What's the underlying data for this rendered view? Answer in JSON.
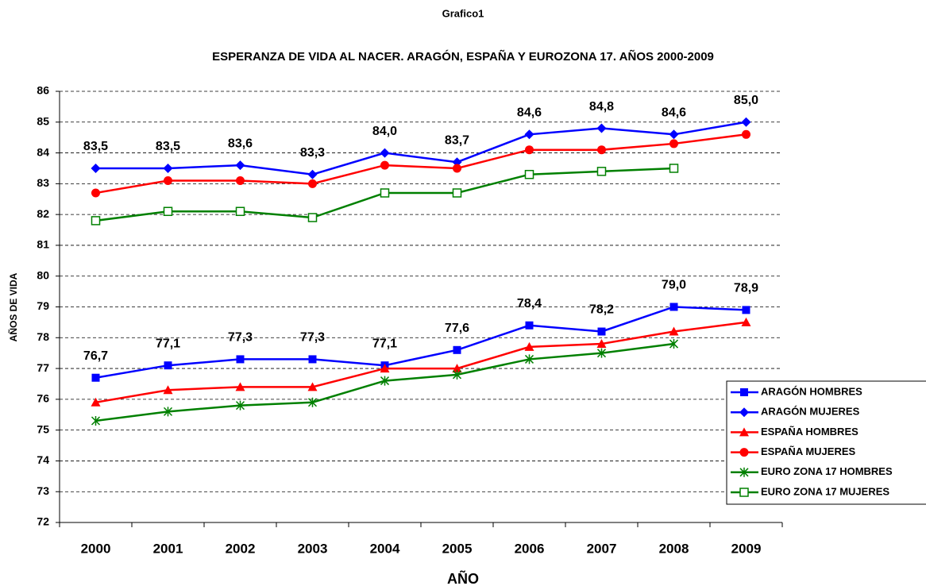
{
  "chart_data": {
    "type": "line",
    "header": "Grafico1",
    "title": "ESPERANZA DE VIDA AL NACER.   ARAGÓN, ESPAÑA Y EUROZONA 17.   AÑOS 2000-2009",
    "x_label": "AÑO",
    "y_label": "AÑOS DE VIDA",
    "categories": [
      "2000",
      "2001",
      "2002",
      "2003",
      "2004",
      "2005",
      "2006",
      "2007",
      "2008",
      "2009"
    ],
    "ylim": [
      72,
      86
    ],
    "yticks": [
      72,
      73,
      74,
      75,
      76,
      77,
      78,
      79,
      80,
      81,
      82,
      83,
      84,
      85,
      86
    ],
    "grid": true,
    "legend": "bottom-right",
    "series": [
      {
        "name": "ARAGÓN HOMBRES",
        "color": "#0000ff",
        "marker": "square",
        "values": [
          76.7,
          77.1,
          77.3,
          77.3,
          77.1,
          77.6,
          78.4,
          78.2,
          79.0,
          78.9
        ],
        "value_labels": [
          "76,7",
          "77,1",
          "77,3",
          "77,3",
          "77,1",
          "77,6",
          "78,4",
          "78,2",
          "79,0",
          "78,9"
        ]
      },
      {
        "name": "ARAGÓN MUJERES",
        "color": "#0000ff",
        "marker": "diamond",
        "values": [
          83.5,
          83.5,
          83.6,
          83.3,
          84.0,
          83.7,
          84.6,
          84.8,
          84.6,
          85.0
        ],
        "value_labels": [
          "83,5",
          "83,5",
          "83,6",
          "83,3",
          "84,0",
          "83,7",
          "84,6",
          "84,8",
          "84,6",
          "85,0"
        ]
      },
      {
        "name": "ESPAÑA HOMBRES",
        "color": "#ff0000",
        "marker": "triangle",
        "values": [
          75.9,
          76.3,
          76.4,
          76.4,
          77.0,
          77.0,
          77.7,
          77.8,
          78.2,
          78.5
        ]
      },
      {
        "name": "ESPAÑA MUJERES",
        "color": "#ff0000",
        "marker": "circle",
        "values": [
          82.7,
          83.1,
          83.1,
          83.0,
          83.6,
          83.5,
          84.1,
          84.1,
          84.3,
          84.6
        ]
      },
      {
        "name": "EURO ZONA 17 HOMBRES",
        "color": "#008000",
        "marker": "star",
        "values": [
          75.3,
          75.6,
          75.8,
          75.9,
          76.6,
          76.8,
          77.3,
          77.5,
          77.8,
          null
        ]
      },
      {
        "name": "EURO ZONA 17 MUJERES",
        "color": "#008000",
        "marker": "open-square",
        "values": [
          81.8,
          82.1,
          82.1,
          81.9,
          82.7,
          82.7,
          83.3,
          83.4,
          83.5,
          null
        ]
      }
    ]
  }
}
